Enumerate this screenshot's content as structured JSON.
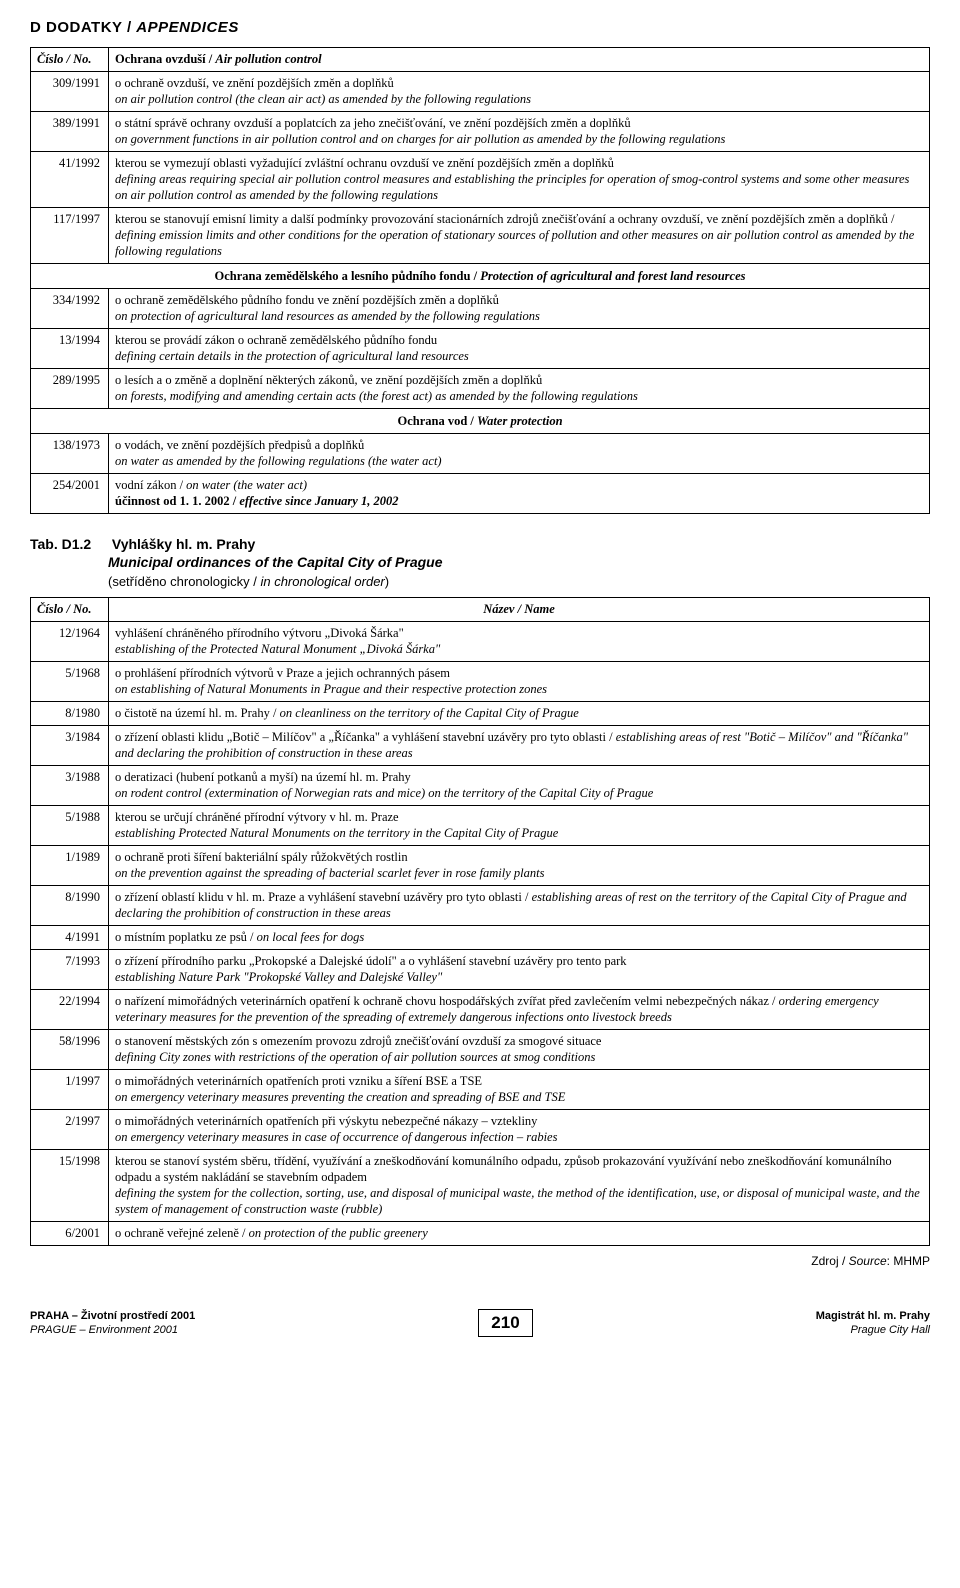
{
  "page_header": {
    "cs": "D  DODATKY",
    "en": "APPENDICES"
  },
  "table1": {
    "header": {
      "col1": "Číslo / No.",
      "col2_cs": "Ochrana ovzduší",
      "col2_en": "Air pollution control"
    },
    "rows": [
      {
        "num": "309/1991",
        "cs": "o ochraně ovzduší, ve znění pozdějších změn a doplňků",
        "en": "on air pollution control (the clean air act) as amended by the following regulations"
      },
      {
        "num": "389/1991",
        "cs": "o státní správě ochrany ovzduší a poplatcích za jeho znečišťování, ve znění pozdějších změn a doplňků",
        "en": "on government functions in air pollution control and on charges for air pollution as amended by the following regulations"
      },
      {
        "num": "41/1992",
        "cs": "kterou se vymezují oblasti vyžadující zvláštní ochranu ovzduší ve znění pozdějších změn a doplňků",
        "en": "defining areas requiring special air pollution control measures and establishing the principles for operation of smog-control systems and some other measures on air pollution control as amended by the following regulations"
      },
      {
        "num": "117/1997",
        "cs": "kterou se stanovují emisní limity a další podmínky provozování stacionárních zdrojů znečišťování a ochrany ovzduší, ve znění pozdějších změn a doplňků / defining emission limits and other conditions for the operation of stationary sources of pollution and other measures on air pollution control as amended by the following regulations",
        "en": ""
      }
    ],
    "section2": {
      "cs": "Ochrana zemědělského a lesního půdního fondu",
      "en": "Protection of agricultural and forest land resources"
    },
    "rows2": [
      {
        "num": "334/1992",
        "cs": "o ochraně zemědělského půdního fondu ve znění pozdějších změn a doplňků",
        "en": "on protection of agricultural land resources as amended by the following regulations"
      },
      {
        "num": "13/1994",
        "cs": "kterou se provádí zákon o ochraně zemědělského půdního fondu",
        "en": "defining certain details in the protection of agricultural land resources"
      },
      {
        "num": "289/1995",
        "cs": "o lesích a o změně a doplnění některých zákonů, ve znění pozdějších změn a doplňků",
        "en": "on forests, modifying and amending certain acts (the forest act) as amended by the following regulations"
      }
    ],
    "section3": {
      "cs": "Ochrana vod",
      "en": "Water protection"
    },
    "rows3": [
      {
        "num": "138/1973",
        "cs": "o vodách, ve znění pozdějších předpisů a doplňků",
        "en": "on water as amended by the following regulations (the water act)"
      },
      {
        "num": "254/2001",
        "cs_first": "vodní zákon / ",
        "en_inline": "on water (the water act)",
        "cs2": "účinnost od 1. 1. 2002 / ",
        "en2_inline": "effective since January 1, 2002"
      }
    ]
  },
  "tab_title": {
    "label": "Tab. D1.2",
    "cs": "Vyhlášky hl. m. Prahy",
    "en": "Municipal ordinances of the Capital City of Prague",
    "sub_cs": "(setříděno chronologicky / ",
    "sub_en": "in chronological order",
    "sub_close": ")"
  },
  "table2": {
    "header": {
      "col1": "Číslo / No.",
      "col2": "Název / Name"
    },
    "rows": [
      {
        "num": "12/1964",
        "cs": "vyhlášení chráněného přírodního výtvoru „Divoká Šárka\"",
        "en": "establishing of the Protected Natural Monument „Divoká Šárka\""
      },
      {
        "num": "5/1968",
        "cs": "o prohlášení přírodních výtvorů v Praze a jejich ochranných pásem",
        "en": "on establishing of Natural Monuments in Prague and their respective protection zones"
      },
      {
        "num": "8/1980",
        "combined": "o čistotě na území hl. m. Prahy / on cleanliness on the territory of the Capital City of Prague"
      },
      {
        "num": "3/1984",
        "combined": "o zřízení oblasti klidu „Botič – Milíčov\" a „Říčanka\" a vyhlášení stavební uzávěry pro tyto oblasti / establishing areas of rest \"Botič – Milíčov\" and \"Říčanka\" and declaring the prohibition of construction in these areas"
      },
      {
        "num": "3/1988",
        "cs": "o deratizaci (hubení potkanů a myší) na území hl. m. Prahy",
        "en": "on rodent control (extermination of Norwegian rats and mice) on the territory of the Capital City of Prague"
      },
      {
        "num": "5/1988",
        "cs": "kterou se určují chráněné přírodní výtvory v hl. m. Praze",
        "en": "establishing Protected Natural Monuments on the territory in the Capital City of Prague"
      },
      {
        "num": "1/1989",
        "cs": "o ochraně proti šíření bakteriální spály růžokvětých rostlin",
        "en": "on the prevention against the spreading of bacterial scarlet fever in rose family plants"
      },
      {
        "num": "8/1990",
        "combined": "o zřízení oblastí klidu v hl. m. Praze a vyhlášení stavební uzávěry pro tyto oblasti / establishing areas of rest on the territory of the Capital City of Prague and declaring the prohibition of construction in these areas"
      },
      {
        "num": "4/1991",
        "combined": "o místním poplatku ze psů / on local fees for dogs"
      },
      {
        "num": "7/1993",
        "cs": "o zřízení přírodního parku „Prokopské a Dalejské údolí\" a o vyhlášení stavební uzávěry pro tento park",
        "en": "establishing Nature Park \"Prokopské Valley and Dalejské Valley\""
      },
      {
        "num": "22/1994",
        "combined": "o nařízení mimořádných veterinárních opatření k ochraně chovu hospodářských zvířat před zavlečením velmi nebezpečných nákaz / ordering emergency veterinary measures for the prevention of the spreading of extremely dangerous infections onto livestock breeds"
      },
      {
        "num": "58/1996",
        "cs": "o stanovení městských zón s omezením provozu zdrojů znečišťování ovzduší za smogové situace",
        "en": "defining City zones with restrictions of the operation of air pollution sources at smog conditions"
      },
      {
        "num": "1/1997",
        "cs": "o mimořádných veterinárních opatřeních proti vzniku a šíření BSE a TSE",
        "en": "on emergency veterinary measures preventing the creation and spreading of BSE and TSE"
      },
      {
        "num": "2/1997",
        "cs": "o mimořádných veterinárních opatřeních při výskytu nebezpečné nákazy – vztekliny",
        "en": "on emergency veterinary measures in case of occurrence of dangerous infection – rabies"
      },
      {
        "num": "15/1998",
        "cs": "kterou se stanoví systém sběru, třídění, využívání a zneškodňování komunálního odpadu, způsob prokazování využívání nebo zneškodňování komunálního odpadu a systém nakládání se stavebním odpadem",
        "en": "defining the system for the collection, sorting, use, and disposal of municipal waste, the method of the identification, use, or disposal of municipal waste, and the system of management of construction waste (rubble)"
      },
      {
        "num": "6/2001",
        "combined": "o ochraně veřejné zeleně / on protection of the public greenery"
      }
    ]
  },
  "source": {
    "label": "Zdroj / ",
    "italic": "Source",
    "rest": ": MHMP"
  },
  "footer": {
    "left1": "PRAHA – Životní prostředí 2001",
    "left2": "PRAGUE – Environment 2001",
    "page": "210",
    "right1": "Magistrát hl. m. Prahy",
    "right2": "Prague City Hall"
  }
}
